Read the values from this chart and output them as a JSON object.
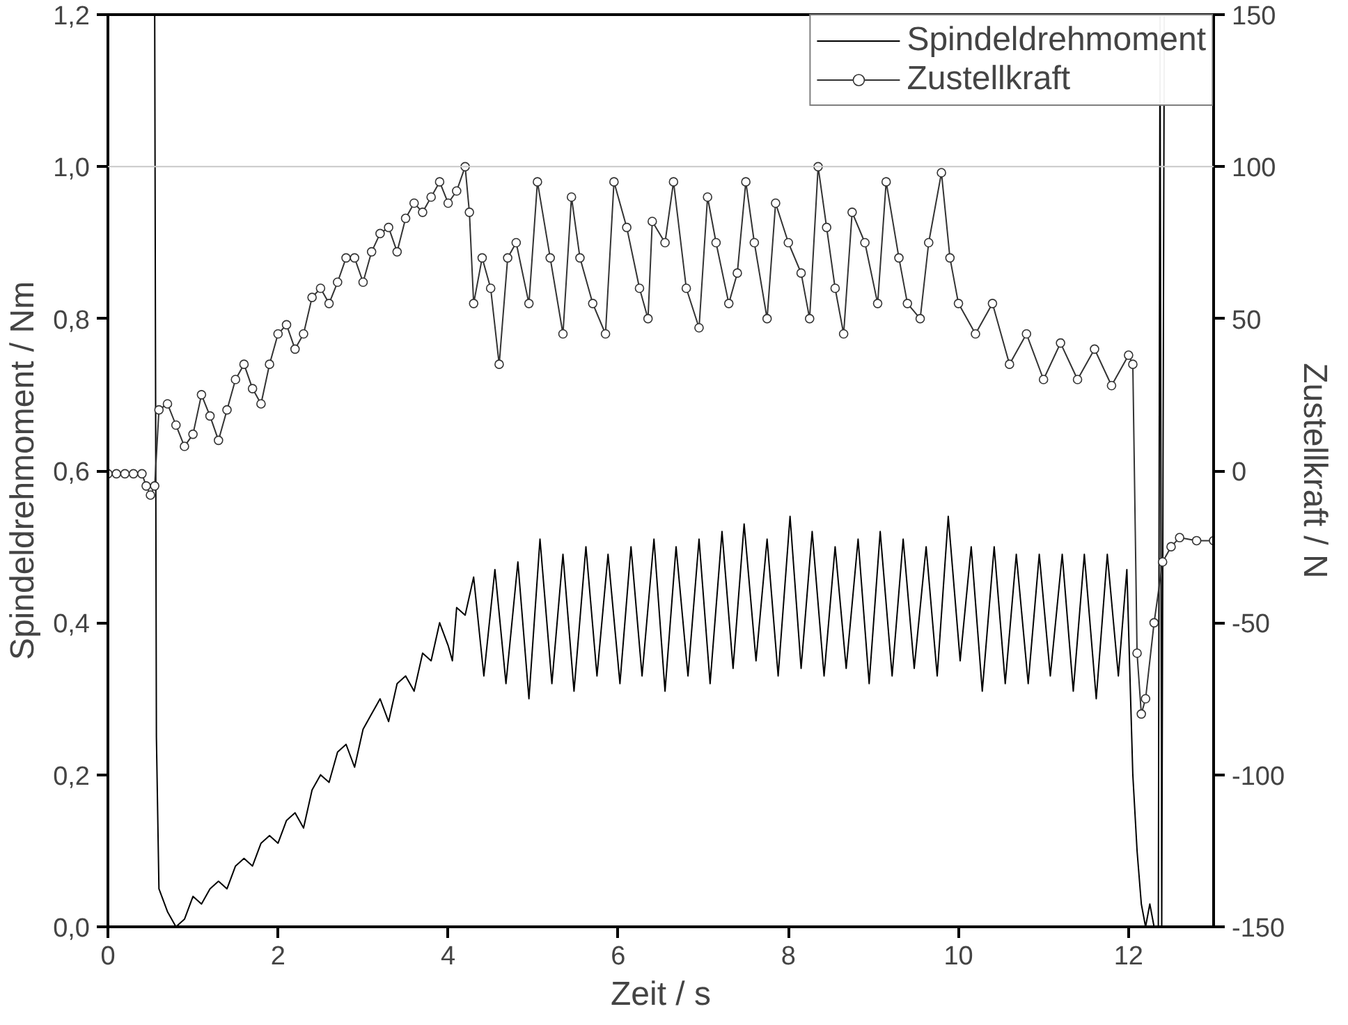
{
  "chart_data": {
    "type": "line",
    "xlabel": "Zeit / s",
    "ylabel": "Spindeldrehmoment / Nm",
    "y2label": "Zustellkraft / N",
    "xlim": [
      0,
      13
    ],
    "xticks": [
      0,
      2,
      4,
      6,
      8,
      10,
      12
    ],
    "ylim": [
      0,
      1.2
    ],
    "yticks": [
      {
        "value": 0,
        "label": "0,0"
      },
      {
        "value": 0.2,
        "label": "0,2"
      },
      {
        "value": 0.4,
        "label": "0,4"
      },
      {
        "value": 0.6,
        "label": "0,6"
      },
      {
        "value": 0.8,
        "label": "0,8"
      },
      {
        "value": 1.0,
        "label": "1,0"
      },
      {
        "value": 1.2,
        "label": "1,2"
      }
    ],
    "y2lim": [
      -150,
      150
    ],
    "y2ticks": [
      -150,
      -100,
      -50,
      0,
      50,
      100,
      150
    ],
    "grid": false,
    "legend": "top right",
    "ref_lines": [
      {
        "axis": "y",
        "value": 1.0,
        "color": "#c8c8c8"
      }
    ],
    "series": [
      {
        "name": "Spindeldrehmoment",
        "color": "#000000",
        "marker": "none",
        "x": [
          0.55,
          0.57,
          0.6,
          0.7,
          0.8,
          0.9,
          1.0,
          1.1,
          1.2,
          1.3,
          1.4,
          1.5,
          1.6,
          1.7,
          1.8,
          1.9,
          2.0,
          2.1,
          2.2,
          2.3,
          2.4,
          2.5,
          2.6,
          2.7,
          2.8,
          2.9,
          3.0,
          3.1,
          3.2,
          3.3,
          3.4,
          3.5,
          3.6,
          3.7,
          3.8,
          3.9,
          4.0,
          4.05,
          4.1,
          4.2,
          4.3,
          4.42,
          4.55,
          4.68,
          4.82,
          4.95,
          5.08,
          5.22,
          5.35,
          5.48,
          5.62,
          5.75,
          5.88,
          6.02,
          6.15,
          6.28,
          6.42,
          6.55,
          6.68,
          6.82,
          6.95,
          7.08,
          7.22,
          7.35,
          7.48,
          7.62,
          7.75,
          7.88,
          8.02,
          8.15,
          8.28,
          8.42,
          8.55,
          8.68,
          8.82,
          8.95,
          9.08,
          9.22,
          9.35,
          9.48,
          9.62,
          9.75,
          9.88,
          10.02,
          10.15,
          10.28,
          10.42,
          10.55,
          10.68,
          10.82,
          10.95,
          11.08,
          11.22,
          11.35,
          11.48,
          11.62,
          11.75,
          11.88,
          11.98,
          12.05,
          12.1,
          12.15,
          12.2,
          12.25,
          12.3,
          12.35,
          12.37,
          12.39,
          12.42
        ],
        "values": [
          1.2,
          0.25,
          0.05,
          0.02,
          0.0,
          0.01,
          0.04,
          0.03,
          0.05,
          0.06,
          0.05,
          0.08,
          0.09,
          0.08,
          0.11,
          0.12,
          0.11,
          0.14,
          0.15,
          0.13,
          0.18,
          0.2,
          0.19,
          0.23,
          0.24,
          0.21,
          0.26,
          0.28,
          0.3,
          0.27,
          0.32,
          0.33,
          0.31,
          0.36,
          0.35,
          0.4,
          0.37,
          0.35,
          0.42,
          0.41,
          0.46,
          0.33,
          0.47,
          0.32,
          0.48,
          0.3,
          0.51,
          0.32,
          0.49,
          0.31,
          0.5,
          0.33,
          0.49,
          0.32,
          0.5,
          0.33,
          0.51,
          0.31,
          0.5,
          0.33,
          0.51,
          0.32,
          0.52,
          0.34,
          0.53,
          0.35,
          0.51,
          0.33,
          0.54,
          0.34,
          0.52,
          0.33,
          0.5,
          0.34,
          0.51,
          0.32,
          0.52,
          0.33,
          0.51,
          0.34,
          0.5,
          0.33,
          0.54,
          0.35,
          0.5,
          0.31,
          0.5,
          0.32,
          0.49,
          0.32,
          0.49,
          0.33,
          0.49,
          0.31,
          0.49,
          0.3,
          0.49,
          0.33,
          0.47,
          0.2,
          0.1,
          0.03,
          0.0,
          0.03,
          0.0,
          0.0,
          1.2,
          0.0,
          1.2
        ]
      },
      {
        "name": "Zustellkraft",
        "color": "#333333",
        "marker": "circle",
        "axis": "y2",
        "x": [
          0,
          0.1,
          0.2,
          0.3,
          0.4,
          0.45,
          0.5,
          0.55,
          0.6,
          0.7,
          0.8,
          0.9,
          1.0,
          1.1,
          1.2,
          1.3,
          1.4,
          1.5,
          1.6,
          1.7,
          1.8,
          1.9,
          2.0,
          2.1,
          2.2,
          2.3,
          2.4,
          2.5,
          2.6,
          2.7,
          2.8,
          2.9,
          3.0,
          3.1,
          3.2,
          3.3,
          3.4,
          3.5,
          3.6,
          3.7,
          3.8,
          3.9,
          4.0,
          4.1,
          4.2,
          4.25,
          4.3,
          4.4,
          4.5,
          4.6,
          4.7,
          4.8,
          4.95,
          5.05,
          5.2,
          5.35,
          5.45,
          5.55,
          5.7,
          5.85,
          5.95,
          6.1,
          6.25,
          6.35,
          6.4,
          6.55,
          6.65,
          6.8,
          6.95,
          7.05,
          7.15,
          7.3,
          7.4,
          7.5,
          7.6,
          7.75,
          7.85,
          8.0,
          8.15,
          8.25,
          8.35,
          8.45,
          8.55,
          8.65,
          8.75,
          8.9,
          9.05,
          9.15,
          9.3,
          9.4,
          9.55,
          9.65,
          9.8,
          9.9,
          10.0,
          10.2,
          10.4,
          10.6,
          10.8,
          11.0,
          11.2,
          11.4,
          11.6,
          11.8,
          12.0,
          12.05,
          12.1,
          12.15,
          12.2,
          12.3,
          12.4,
          12.5,
          12.6,
          12.8,
          13.0
        ],
        "values": [
          -1,
          -1,
          -1,
          -1,
          -1,
          -5,
          -8,
          -5,
          20,
          22,
          15,
          8,
          12,
          25,
          18,
          10,
          20,
          30,
          35,
          27,
          22,
          35,
          45,
          48,
          40,
          45,
          57,
          60,
          55,
          62,
          70,
          70,
          62,
          72,
          78,
          80,
          72,
          83,
          88,
          85,
          90,
          95,
          88,
          92,
          100,
          85,
          55,
          70,
          60,
          35,
          70,
          75,
          55,
          95,
          70,
          45,
          90,
          70,
          55,
          45,
          95,
          80,
          60,
          50,
          82,
          75,
          95,
          60,
          47,
          90,
          75,
          55,
          65,
          95,
          75,
          50,
          88,
          75,
          65,
          50,
          100,
          80,
          60,
          45,
          85,
          75,
          55,
          95,
          70,
          55,
          50,
          75,
          98,
          70,
          55,
          45,
          55,
          35,
          45,
          30,
          42,
          30,
          40,
          28,
          38,
          35,
          -60,
          -80,
          -75,
          -50,
          -30,
          -25,
          -22,
          -23,
          -23
        ]
      }
    ]
  }
}
